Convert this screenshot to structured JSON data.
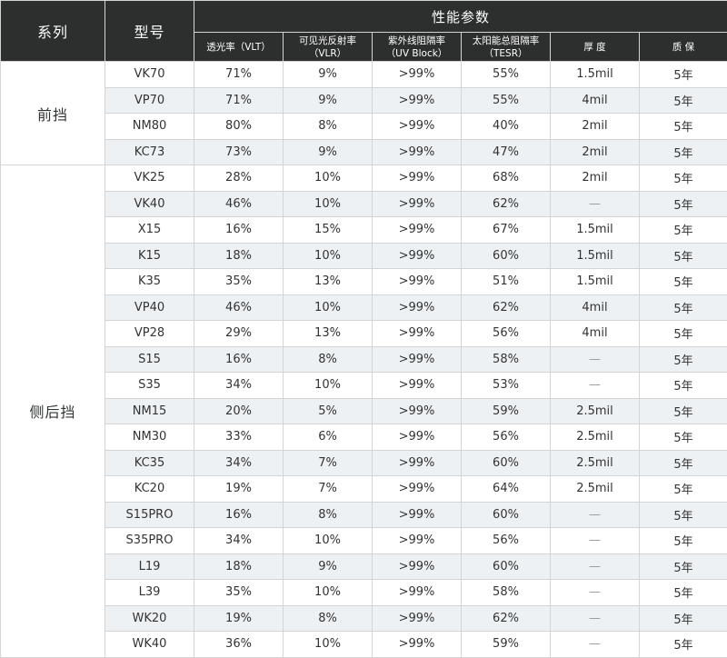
{
  "header": {
    "series": "系列",
    "model": "型号",
    "performance": "性能参数",
    "columns": [
      {
        "line1": "透光率（VLT）",
        "line2": ""
      },
      {
        "line1": "可见光反射率",
        "line2": "（VLR）"
      },
      {
        "line1": "紫外线阻隔率",
        "line2": "（UV Block）"
      },
      {
        "line1": "太阳能总阻隔率",
        "line2": "（TESR）"
      },
      {
        "line1": "厚 度",
        "line2": ""
      },
      {
        "line1": "质 保",
        "line2": ""
      }
    ]
  },
  "groups": [
    {
      "name": "前挡",
      "rows": [
        {
          "model": "VK70",
          "vlt": "71%",
          "vlr": "9%",
          "uv": ">99%",
          "tesr": "55%",
          "thickness": "1.5mil",
          "warranty": "5年"
        },
        {
          "model": "VP70",
          "vlt": "71%",
          "vlr": "9%",
          "uv": ">99%",
          "tesr": "55%",
          "thickness": "4mil",
          "warranty": "5年"
        },
        {
          "model": "NM80",
          "vlt": "80%",
          "vlr": "8%",
          "uv": ">99%",
          "tesr": "40%",
          "thickness": "2mil",
          "warranty": "5年"
        },
        {
          "model": "KC73",
          "vlt": "73%",
          "vlr": "9%",
          "uv": ">99%",
          "tesr": "47%",
          "thickness": "2mil",
          "warranty": "5年"
        }
      ]
    },
    {
      "name": "侧后挡",
      "rows": [
        {
          "model": "VK25",
          "vlt": "28%",
          "vlr": "10%",
          "uv": ">99%",
          "tesr": "68%",
          "thickness": "2mil",
          "warranty": "5年"
        },
        {
          "model": "VK40",
          "vlt": "46%",
          "vlr": "10%",
          "uv": ">99%",
          "tesr": "62%",
          "thickness": "—",
          "warranty": "5年"
        },
        {
          "model": "X15",
          "vlt": "16%",
          "vlr": "15%",
          "uv": ">99%",
          "tesr": "67%",
          "thickness": "1.5mil",
          "warranty": "5年"
        },
        {
          "model": "K15",
          "vlt": "18%",
          "vlr": "10%",
          "uv": ">99%",
          "tesr": "60%",
          "thickness": "1.5mil",
          "warranty": "5年"
        },
        {
          "model": "K35",
          "vlt": "35%",
          "vlr": "13%",
          "uv": ">99%",
          "tesr": "51%",
          "thickness": "1.5mil",
          "warranty": "5年"
        },
        {
          "model": "VP40",
          "vlt": "46%",
          "vlr": "10%",
          "uv": ">99%",
          "tesr": "62%",
          "thickness": "4mil",
          "warranty": "5年"
        },
        {
          "model": "VP28",
          "vlt": "29%",
          "vlr": "13%",
          "uv": ">99%",
          "tesr": "56%",
          "thickness": "4mil",
          "warranty": "5年"
        },
        {
          "model": "S15",
          "vlt": "16%",
          "vlr": "8%",
          "uv": ">99%",
          "tesr": "58%",
          "thickness": "—",
          "warranty": "5年"
        },
        {
          "model": "S35",
          "vlt": "34%",
          "vlr": "10%",
          "uv": ">99%",
          "tesr": "53%",
          "thickness": "—",
          "warranty": "5年"
        },
        {
          "model": "NM15",
          "vlt": "20%",
          "vlr": "5%",
          "uv": ">99%",
          "tesr": "59%",
          "thickness": "2.5mil",
          "warranty": "5年"
        },
        {
          "model": "NM30",
          "vlt": "33%",
          "vlr": "6%",
          "uv": ">99%",
          "tesr": "56%",
          "thickness": "2.5mil",
          "warranty": "5年"
        },
        {
          "model": "KC35",
          "vlt": "34%",
          "vlr": "7%",
          "uv": ">99%",
          "tesr": "60%",
          "thickness": "2.5mil",
          "warranty": "5年"
        },
        {
          "model": "KC20",
          "vlt": "19%",
          "vlr": "7%",
          "uv": ">99%",
          "tesr": "64%",
          "thickness": "2.5mil",
          "warranty": "5年"
        },
        {
          "model": "S15PRO",
          "vlt": "16%",
          "vlr": "8%",
          "uv": ">99%",
          "tesr": "60%",
          "thickness": "—",
          "warranty": "5年"
        },
        {
          "model": "S35PRO",
          "vlt": "34%",
          "vlr": "10%",
          "uv": ">99%",
          "tesr": "56%",
          "thickness": "—",
          "warranty": "5年"
        },
        {
          "model": "L19",
          "vlt": "18%",
          "vlr": "9%",
          "uv": ">99%",
          "tesr": "60%",
          "thickness": "—",
          "warranty": "5年"
        },
        {
          "model": "L39",
          "vlt": "35%",
          "vlr": "10%",
          "uv": ">99%",
          "tesr": "58%",
          "thickness": "—",
          "warranty": "5年"
        },
        {
          "model": "WK20",
          "vlt": "19%",
          "vlr": "8%",
          "uv": ">99%",
          "tesr": "62%",
          "thickness": "—",
          "warranty": "5年"
        },
        {
          "model": "WK40",
          "vlt": "36%",
          "vlr": "10%",
          "uv": ">99%",
          "tesr": "59%",
          "thickness": "—",
          "warranty": "5年"
        }
      ]
    }
  ],
  "colors": {
    "header_bg": "#2d2f2e",
    "stripe": "#edf1f4",
    "border": "#d4d4d4"
  }
}
